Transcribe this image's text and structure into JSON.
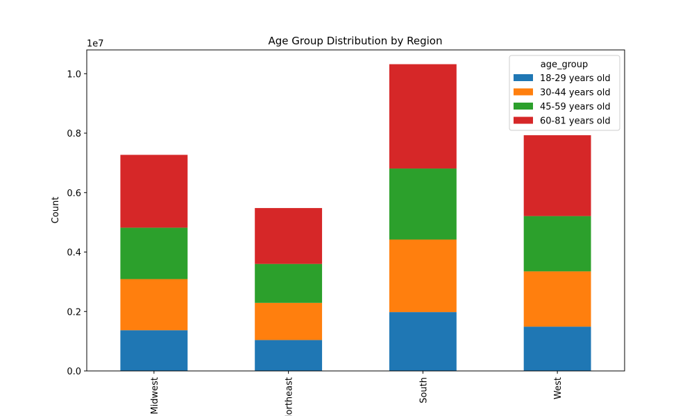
{
  "chart_data": {
    "type": "bar",
    "stacked": true,
    "title": "Age Group Distribution by Region",
    "xlabel": "",
    "ylabel": "Count",
    "y_scale_label": "1e7",
    "ylim": [
      0,
      1.08
    ],
    "yticks": [
      "0.0",
      "0.2",
      "0.4",
      "0.6",
      "0.8",
      "1.0"
    ],
    "yticks_values": [
      0.0,
      0.2,
      0.4,
      0.6,
      0.8,
      1.0
    ],
    "categories": [
      "Midwest",
      "Northeast",
      "South",
      "West"
    ],
    "legend_title": "age_group",
    "legend_placement": "top-right",
    "series": [
      {
        "name": "18-29 years old",
        "color": "#1f77b4",
        "values": [
          0.137,
          0.104,
          0.198,
          0.149
        ]
      },
      {
        "name": "30-44 years old",
        "color": "#ff7f0e",
        "values": [
          0.172,
          0.125,
          0.244,
          0.186
        ]
      },
      {
        "name": "45-59 years old",
        "color": "#2ca02c",
        "values": [
          0.173,
          0.131,
          0.239,
          0.186
        ]
      },
      {
        "name": "60-81 years old",
        "color": "#d62728",
        "values": [
          0.245,
          0.188,
          0.351,
          0.272
        ]
      }
    ]
  }
}
